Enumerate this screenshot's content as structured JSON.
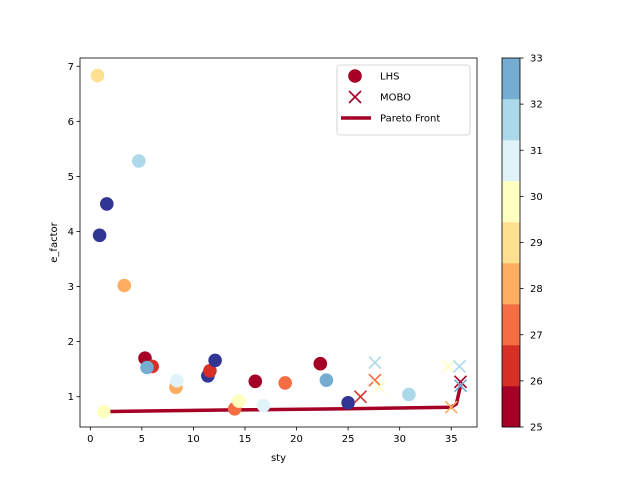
{
  "chart_data": {
    "type": "scatter",
    "xlabel": "sty",
    "ylabel": "e_factor",
    "xlim": [
      -1,
      37.5
    ],
    "ylim": [
      0.45,
      7.15
    ],
    "xticks": [
      0,
      5,
      10,
      15,
      20,
      25,
      30,
      35
    ],
    "yticks": [
      1,
      2,
      3,
      4,
      5,
      6,
      7
    ],
    "legend": {
      "position": "top-right",
      "entries": [
        {
          "label": "LHS",
          "marker": "circle"
        },
        {
          "label": "MOBO",
          "marker": "x"
        },
        {
          "label": "Pareto Front",
          "marker": "line"
        }
      ]
    },
    "colorbar": {
      "min": 25,
      "max": 33,
      "ticks": [
        25,
        26,
        27,
        28,
        29,
        30,
        31,
        32,
        33
      ],
      "colors": [
        "#a50026",
        "#d73027",
        "#f46d43",
        "#fdae61",
        "#fee090",
        "#ffffbf",
        "#e0f3f8",
        "#abd9e9",
        "#74add1"
      ]
    },
    "series": [
      {
        "name": "LHS",
        "marker": "circle",
        "points": [
          {
            "x": 0.7,
            "y": 6.83,
            "c": 29.2
          },
          {
            "x": 0.9,
            "y": 3.93,
            "c": 33.8
          },
          {
            "x": 1.6,
            "y": 4.5,
            "c": 33.8
          },
          {
            "x": 1.3,
            "y": 0.73,
            "c": 29.5
          },
          {
            "x": 3.3,
            "y": 3.02,
            "c": 28.2
          },
          {
            "x": 4.7,
            "y": 5.28,
            "c": 31.8
          },
          {
            "x": 5.3,
            "y": 1.7,
            "c": 25.3
          },
          {
            "x": 6.0,
            "y": 1.55,
            "c": 26.1
          },
          {
            "x": 5.5,
            "y": 1.53,
            "c": 32.5
          },
          {
            "x": 8.3,
            "y": 1.17,
            "c": 28.3
          },
          {
            "x": 8.4,
            "y": 1.29,
            "c": 31.0
          },
          {
            "x": 11.4,
            "y": 1.38,
            "c": 33.2
          },
          {
            "x": 11.6,
            "y": 1.47,
            "c": 26.3
          },
          {
            "x": 12.1,
            "y": 1.66,
            "c": 33.2
          },
          {
            "x": 14.0,
            "y": 0.78,
            "c": 27.3
          },
          {
            "x": 14.4,
            "y": 0.92,
            "c": 29.7
          },
          {
            "x": 16.0,
            "y": 1.28,
            "c": 25.3
          },
          {
            "x": 16.8,
            "y": 0.84,
            "c": 31.0
          },
          {
            "x": 18.9,
            "y": 1.25,
            "c": 27.3
          },
          {
            "x": 22.3,
            "y": 1.6,
            "c": 25.3
          },
          {
            "x": 22.9,
            "y": 1.3,
            "c": 32.5
          },
          {
            "x": 25.0,
            "y": 0.89,
            "c": 33.8
          },
          {
            "x": 30.9,
            "y": 1.04,
            "c": 31.6
          }
        ]
      },
      {
        "name": "MOBO",
        "marker": "x",
        "points": [
          {
            "x": 26.2,
            "y": 1.0,
            "c": 26.3
          },
          {
            "x": 27.6,
            "y": 1.62,
            "c": 31.8
          },
          {
            "x": 27.6,
            "y": 1.3,
            "c": 27.4
          },
          {
            "x": 28.0,
            "y": 1.18,
            "c": 29.6
          },
          {
            "x": 34.7,
            "y": 1.55,
            "c": 29.9
          },
          {
            "x": 35.0,
            "y": 0.81,
            "c": 28.3
          },
          {
            "x": 35.8,
            "y": 1.55,
            "c": 31.3
          },
          {
            "x": 35.9,
            "y": 1.27,
            "c": 25.4
          },
          {
            "x": 35.9,
            "y": 1.2,
            "c": 32.8
          }
        ]
      },
      {
        "name": "Pareto Front",
        "marker": "line",
        "color": "#a50026",
        "points": [
          {
            "x": 1.3,
            "y": 0.73
          },
          {
            "x": 14.0,
            "y": 0.76
          },
          {
            "x": 25.0,
            "y": 0.78
          },
          {
            "x": 35.0,
            "y": 0.81
          },
          {
            "x": 35.5,
            "y": 0.87
          },
          {
            "x": 35.9,
            "y": 1.2
          }
        ]
      }
    ]
  }
}
